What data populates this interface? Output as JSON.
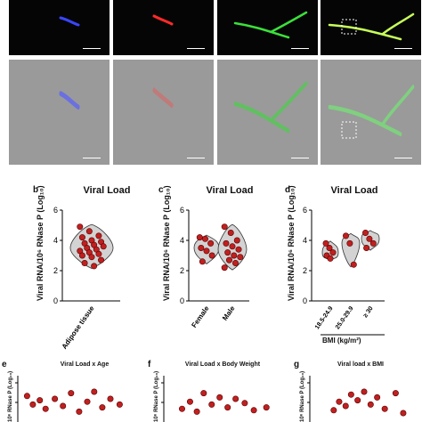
{
  "panel_letters": [
    "b",
    "c",
    "d",
    "e",
    "f",
    "g"
  ],
  "top_tiles": [
    {
      "channel": "blue",
      "scalebar": "10 µm"
    },
    {
      "channel": "red",
      "scalebar": "10 µm"
    },
    {
      "channel": "green",
      "scalebar": "10 µm"
    },
    {
      "channel": "merge",
      "scalebar": "10 µm"
    },
    {
      "channel": "brightfield-blue",
      "scalebar": "10 µm"
    },
    {
      "channel": "brightfield-red",
      "scalebar": "10 µm"
    },
    {
      "channel": "brightfield-green",
      "scalebar": "10 µm"
    },
    {
      "channel": "brightfield-merge",
      "scalebar": "10 µm"
    }
  ],
  "ylabel_main": "Viral  RNA/10⁶ RNase P (Log₁₀)",
  "ylabel_small": "10⁶ RNase P (Log₁₀)",
  "colors": {
    "fill": "#d3d3d3",
    "point": "#c02020",
    "outline": "#333333"
  },
  "chart_data": [
    {
      "panel": "b",
      "type": "violin",
      "title": "Viral Load",
      "ylim": [
        0,
        6
      ],
      "yticks": [
        "0",
        "2",
        "4",
        "6"
      ],
      "categories": [
        "Adipose tissue"
      ],
      "series": [
        {
          "values": [
            [
              4.9,
              4.6,
              4.3,
              4.2,
              4.0,
              3.9,
              3.8,
              3.7,
              3.6,
              3.5,
              3.4,
              3.3,
              3.2,
              3.1,
              3.0,
              2.9,
              2.7,
              2.5,
              2.3
            ]
          ]
        }
      ]
    },
    {
      "panel": "c",
      "type": "violin",
      "title": "Viral Load",
      "ylim": [
        0,
        6
      ],
      "yticks": [
        "0",
        "2",
        "4",
        "6"
      ],
      "categories": [
        "Female",
        "Male"
      ],
      "series": [
        {
          "values": [
            [
              4.2,
              4.1,
              3.8,
              3.5,
              3.3,
              3.0,
              2.6
            ],
            [
              4.9,
              4.5,
              4.0,
              3.8,
              3.6,
              3.4,
              3.2,
              3.0,
              2.9,
              2.7,
              2.5,
              2.2
            ]
          ]
        }
      ]
    },
    {
      "panel": "d",
      "type": "violin",
      "title": "Viral Load",
      "ylim": [
        0,
        6
      ],
      "yticks": [
        "0",
        "2",
        "4",
        "6"
      ],
      "categories": [
        "18.5-24.9",
        "25.0-29.9",
        "≥ 30"
      ],
      "xlabel": "BMI (kg/m²)",
      "series": [
        {
          "values": [
            [
              3.8,
              3.5,
              3.2,
              3.0,
              2.8
            ],
            [
              4.3,
              3.8,
              2.4
            ],
            [
              4.5,
              4.1,
              3.8,
              3.5
            ]
          ]
        }
      ]
    },
    {
      "panel": "e",
      "type": "scatter",
      "title": "Viral Load x Age",
      "points": [
        [
          0.08,
          4.2
        ],
        [
          0.13,
          3.6
        ],
        [
          0.19,
          3.9
        ],
        [
          0.24,
          3.3
        ],
        [
          0.32,
          4.0
        ],
        [
          0.39,
          3.5
        ],
        [
          0.46,
          4.4
        ],
        [
          0.53,
          3.1
        ],
        [
          0.6,
          3.8
        ],
        [
          0.66,
          4.5
        ],
        [
          0.73,
          3.4
        ],
        [
          0.8,
          4.0
        ],
        [
          0.88,
          3.6
        ]
      ]
    },
    {
      "panel": "f",
      "type": "scatter",
      "title": "Viral Load x Body Weight",
      "points": [
        [
          0.16,
          3.3
        ],
        [
          0.23,
          3.8
        ],
        [
          0.29,
          3.1
        ],
        [
          0.35,
          4.4
        ],
        [
          0.42,
          3.6
        ],
        [
          0.49,
          4.1
        ],
        [
          0.56,
          3.4
        ],
        [
          0.63,
          4.0
        ],
        [
          0.71,
          3.7
        ],
        [
          0.79,
          3.2
        ],
        [
          0.9,
          3.4
        ]
      ]
    },
    {
      "panel": "g",
      "type": "scatter",
      "title": "Viral load x BMI",
      "points": [
        [
          0.22,
          3.2
        ],
        [
          0.27,
          3.8
        ],
        [
          0.33,
          3.5
        ],
        [
          0.38,
          4.3
        ],
        [
          0.44,
          3.9
        ],
        [
          0.5,
          4.5
        ],
        [
          0.56,
          3.6
        ],
        [
          0.62,
          4.1
        ],
        [
          0.69,
          3.3
        ],
        [
          0.79,
          4.4
        ],
        [
          0.86,
          3.0
        ]
      ]
    }
  ]
}
